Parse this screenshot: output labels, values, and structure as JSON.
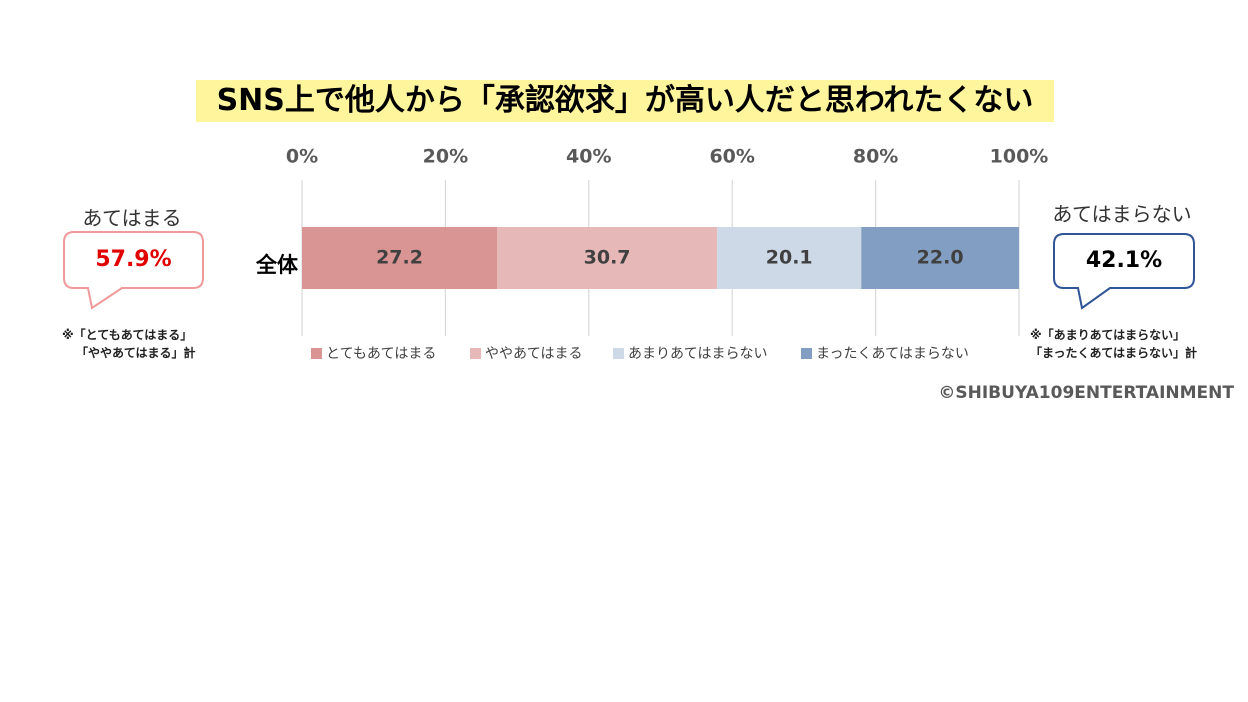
{
  "chart_data": {
    "type": "bar",
    "orientation": "horizontal",
    "stacked": true,
    "title": "SNS上で他人から「承認欲求」が高い人だと思われたくない",
    "categories": [
      "全体"
    ],
    "series": [
      {
        "name": "とてもあてはまる",
        "values": [
          27.2
        ],
        "color": "#d99594"
      },
      {
        "name": "ややあてはまる",
        "values": [
          30.7
        ],
        "color": "#e6b9b8"
      },
      {
        "name": "あまりあてはまらない",
        "values": [
          20.1
        ],
        "color": "#cdd9e7"
      },
      {
        "name": "まったくあてはまらない",
        "values": [
          22.0
        ],
        "color": "#829fc3"
      }
    ],
    "xlim": [
      0,
      100
    ],
    "xticks": [
      "0%",
      "20%",
      "40%",
      "60%",
      "80%",
      "100%"
    ],
    "grid": true,
    "legend_position": "bottom"
  },
  "callouts": {
    "left": {
      "label": "あてはまる",
      "value": "57.9%",
      "value_color": "#e00000",
      "border_color": "#ef9a9a",
      "note_line1": "※「とてもあてはまる」",
      "note_line2": "「ややあてはまる」計"
    },
    "right": {
      "label": "あてはまらない",
      "value": "42.1%",
      "value_color": "#000000",
      "border_color": "#2f5597",
      "note_line1": "※「あまりあてはまらない」",
      "note_line2": "「まったくあてはまらない」計"
    }
  },
  "copyright": "©SHIBUYA109ENTERTAINMENT"
}
